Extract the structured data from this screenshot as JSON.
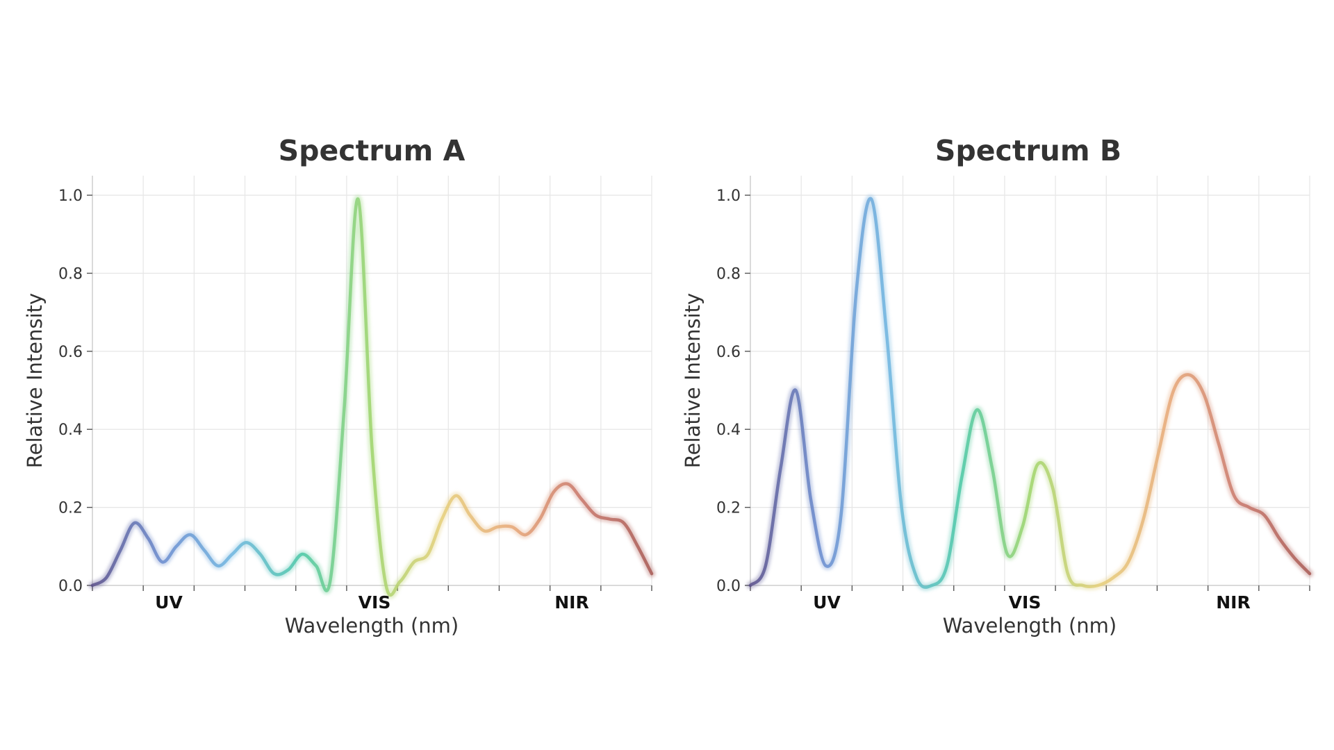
{
  "chart_data": [
    {
      "type": "line",
      "title": "Spectrum A",
      "xlabel": "Wavelength (nm)",
      "ylabel": "Relative Intensity",
      "ylim": [
        0,
        1.05
      ],
      "yticks": [
        "0.0",
        "0.2",
        "0.4",
        "0.6",
        "0.8",
        "1.0"
      ],
      "regions": [
        "UV",
        "VIS",
        "NIR"
      ],
      "grid": true,
      "series": [
        {
          "values": [
            0.0,
            0.02,
            0.09,
            0.16,
            0.12,
            0.06,
            0.1,
            0.13,
            0.09,
            0.05,
            0.08,
            0.11,
            0.08,
            0.03,
            0.04,
            0.08,
            0.05,
            0.01,
            0.45,
            0.99,
            0.35,
            0.0,
            0.01,
            0.06,
            0.08,
            0.17,
            0.23,
            0.18,
            0.14,
            0.15,
            0.15,
            0.13,
            0.17,
            0.24,
            0.26,
            0.22,
            0.18,
            0.17,
            0.16,
            0.1,
            0.03
          ]
        }
      ]
    },
    {
      "type": "line",
      "title": "Spectrum B",
      "xlabel": "Wavelength (nm)",
      "ylabel": "Relative Intensity",
      "ylim": [
        0,
        1.05
      ],
      "yticks": [
        "0.0",
        "0.2",
        "0.4",
        "0.6",
        "0.8",
        "1.0"
      ],
      "regions": [
        "UV",
        "VIS",
        "NIR"
      ],
      "grid": true,
      "series": [
        {
          "values": [
            0.0,
            0.05,
            0.3,
            0.5,
            0.22,
            0.05,
            0.18,
            0.75,
            0.99,
            0.65,
            0.2,
            0.02,
            0.0,
            0.05,
            0.28,
            0.45,
            0.3,
            0.08,
            0.15,
            0.31,
            0.25,
            0.03,
            0.0,
            0.0,
            0.02,
            0.06,
            0.17,
            0.34,
            0.5,
            0.54,
            0.49,
            0.36,
            0.23,
            0.2,
            0.18,
            0.12,
            0.07,
            0.03
          ]
        }
      ]
    }
  ]
}
